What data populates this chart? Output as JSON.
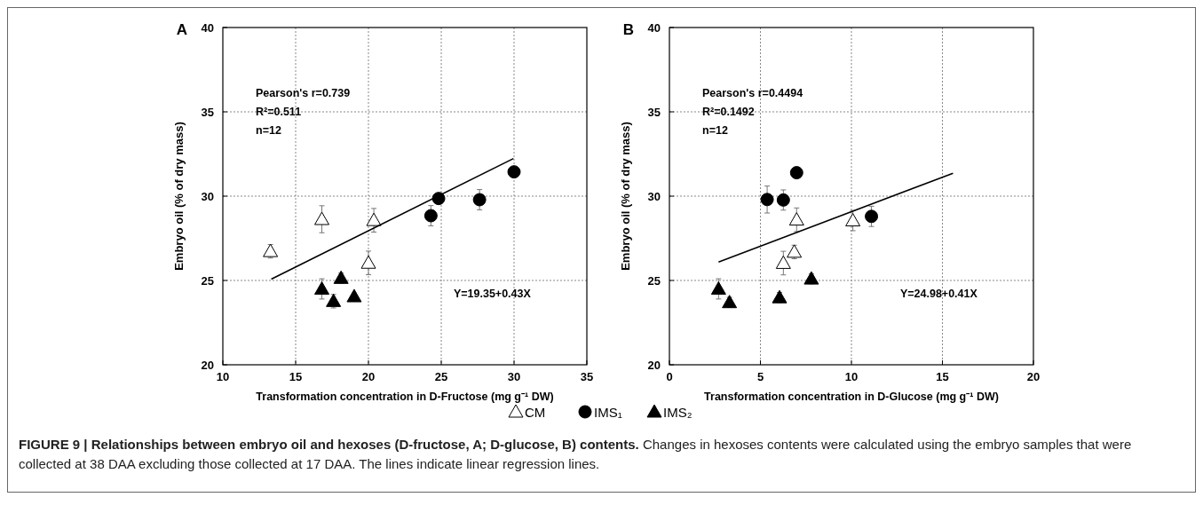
{
  "chart_data": [
    {
      "type": "scatter",
      "title": "A",
      "xlabel": "Transformation concentration  in D-Fructose (mg g⁻¹ DW)",
      "ylabel": "Embryo oil (% of dry mass)",
      "xlim": [
        10,
        35
      ],
      "ylim": [
        20,
        40
      ],
      "xticks": [
        10,
        15,
        20,
        25,
        30,
        35
      ],
      "yticks": [
        20,
        25,
        30,
        35,
        40
      ],
      "grid": true,
      "legend": "bottom",
      "series": [
        {
          "name": "CM",
          "color": "#ffffff",
          "marker": "triangle",
          "x": [
            13.27,
            16.8,
            20.37,
            20.0
          ],
          "values": [
            26.73,
            28.63,
            28.57,
            26.04
          ],
          "errors": [
            0.4,
            0.8,
            0.7,
            0.7
          ]
        },
        {
          "name": "IMS₁",
          "color": "#000000",
          "marker": "circle",
          "x": [
            24.29,
            24.82,
            27.63,
            30.0
          ],
          "values": [
            28.84,
            29.86,
            29.79,
            31.44
          ],
          "errors": [
            0.6,
            0.2,
            0.6,
            0.2
          ]
        },
        {
          "name": "IMS₂",
          "color": "#000000",
          "marker": "triangle",
          "x": [
            16.8,
            17.6,
            18.12,
            19.02
          ],
          "values": [
            24.5,
            23.77,
            25.14,
            24.05
          ],
          "errors": [
            0.6,
            0.4,
            0.3,
            0.2
          ]
        },
        {
          "type": "line",
          "color": "#000000",
          "x": [
            13.33,
            29.96
          ],
          "values": [
            25.08,
            32.23
          ]
        }
      ],
      "annotations": [
        "Pearson's r=0.739",
        "R²=0.511",
        "n=12",
        "Y=19.35+0.43X",
        "FIGURE 9 | Relationships between embryo oil and hexoses (D-fructose, A; D-glucose, B) contents.",
        "Changes in hexoses contents were calculated using the embryo samples that were collected at 38 DAA excluding those collected at 17 DAA. The lines indicate linear regression lines."
      ]
    },
    {
      "type": "scatter",
      "title": "B",
      "xlabel": "Transformation concentration  in D-Glucose (mg g⁻¹ DW)",
      "ylabel": "Embryo oil (% of dry mass)",
      "xlim": [
        0,
        20
      ],
      "ylim": [
        20,
        40
      ],
      "xticks": [
        0,
        5,
        10,
        15,
        20
      ],
      "yticks": [
        20,
        25,
        30,
        35,
        40
      ],
      "grid": true,
      "series": [
        {
          "color": "#ffffff",
          "marker": "triangle",
          "x": [
            6.99,
            10.08,
            6.86,
            6.26
          ],
          "values": [
            28.6,
            28.55,
            26.69,
            26.03
          ],
          "errors": [
            0.7,
            0.6,
            0.4,
            0.7
          ]
        },
        {
          "color": "#000000",
          "marker": "circle",
          "x": [
            5.37,
            6.26,
            6.99,
            11.1
          ],
          "values": [
            29.8,
            29.77,
            31.39,
            28.8
          ],
          "errors": [
            0.8,
            0.6,
            0.3,
            0.6
          ]
        },
        {
          "color": "#000000",
          "marker": "triangle",
          "x": [
            2.7,
            3.3,
            6.05,
            7.8
          ],
          "values": [
            24.5,
            23.7,
            23.99,
            25.1
          ],
          "errors": [
            0.6,
            0.3,
            0.3,
            0.3
          ]
        },
        {
          "type": "line",
          "color": "#000000",
          "x": [
            2.7,
            15.58
          ],
          "values": [
            26.09,
            31.36
          ]
        }
      ],
      "annotations": [
        "Pearson's r=0.4494",
        "R²=0.1492",
        "n=12",
        "Y=24.98+0.41X"
      ]
    }
  ]
}
